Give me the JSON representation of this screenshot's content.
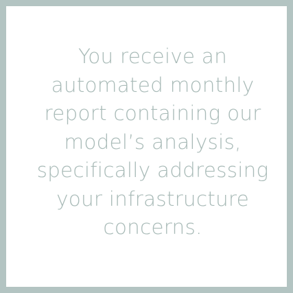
{
  "card": {
    "border_color": "#b3c4c2",
    "text_color": "#a8bab7",
    "background": "#ffffff",
    "message_lines": [
      "You receive an",
      "automated monthly",
      "report containing our",
      "model’s analysis,",
      "specifically addressing",
      "your infrastructure",
      "concerns."
    ]
  }
}
